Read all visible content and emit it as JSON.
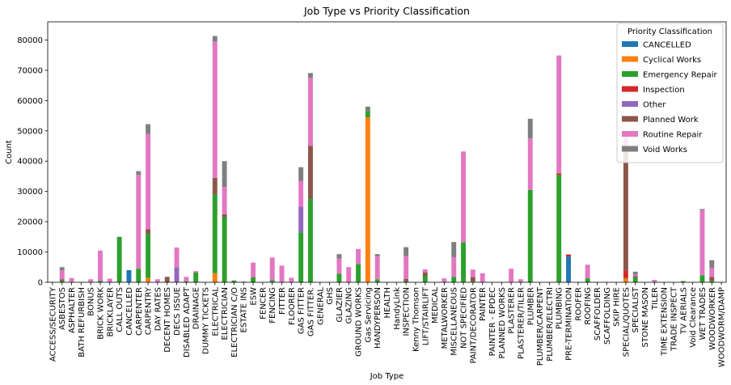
{
  "chart_data": {
    "type": "bar",
    "stacked": true,
    "title": "Job Type vs Priority Classification",
    "xlabel": "Job Type",
    "ylabel": "Count",
    "ylim": [
      0,
      86000
    ],
    "yticks": [
      0,
      10000,
      20000,
      30000,
      40000,
      50000,
      60000,
      70000,
      80000
    ],
    "grid": false,
    "legend": {
      "title": "Priority Classification",
      "placement": "top-right"
    },
    "categories": [
      "ACCESS/SECURITY",
      "ASBESTOS",
      "ASPHALTER",
      "BATH REFURBISH",
      "BONUS",
      "BRICK WORK",
      "BRICKLAYER",
      "CALL OUTS",
      "CANCELLED",
      "CARPENTER",
      "CARPENTRY",
      "DAY RATES",
      "DECENT HOMES",
      "DECS ISSUE",
      "DISABLED ADAPT",
      "DRAINAGE",
      "DUMMY TICKETS",
      "ELECTRICAL",
      "ELECTRICIAN",
      "ELECTRICIAN C/O",
      "ESTATE INS",
      "ESW",
      "FENCER",
      "FENCING",
      "FITTER",
      "FLOORER",
      "GAS FITTER",
      "GAS FITTER.",
      "GENERAL",
      "GHS",
      "GLAZIER",
      "GLAZING",
      "GROUND WORKS",
      "Gas Servicing",
      "HANDYPERSON",
      "HEALTH",
      "HandyLink",
      "INSPECTION",
      "Kenny Thomson",
      "LIFT/STAIRLIFT",
      "MEDICAL",
      "METALWORKER",
      "MISCELLANEOUS",
      "NOT SPECIFIED",
      "PAINT/DECORATOR",
      "PAINTER",
      "PAINTER - EPDEC",
      "PLANNED WORKS",
      "PLASTERER",
      "PLASTERER/TILER",
      "PLUMBER",
      "PLUMBER/CARPENT",
      "PLUMBER/ELECTRI",
      "PLUMBING",
      "PRE-TERMINATION",
      "ROOFER",
      "ROOFING",
      "SCAFFOLDER",
      "SCAFFOLDING",
      "SKIP HIRE",
      "SPECIAL/QUOTES",
      "SPECIALIST",
      "STONE MASON",
      "TILER",
      "TIME EXTENSION",
      "TRADE INSPECT",
      "TV AERIALS",
      "Void Clearance",
      "WET TRADES",
      "WOODWORKER",
      "WOODWORM/DAMP"
    ],
    "series": [
      {
        "name": "CANCELLED",
        "color": "#1f77b4",
        "values": [
          0,
          0,
          0,
          0,
          0,
          0,
          0,
          0,
          4000,
          0,
          0,
          0,
          0,
          0,
          0,
          0,
          0,
          0,
          0,
          0,
          0,
          0,
          0,
          0,
          0,
          0,
          0,
          0,
          0,
          0,
          0,
          0,
          0,
          0,
          0,
          0,
          0,
          0,
          0,
          0,
          0,
          0,
          0,
          0,
          0,
          0,
          0,
          0,
          0,
          0,
          0,
          0,
          0,
          0,
          8500,
          0,
          0,
          0,
          0,
          0,
          0,
          0,
          0,
          0,
          0,
          0,
          0,
          0,
          0,
          0,
          0
        ]
      },
      {
        "name": "Cyclical Works",
        "color": "#ff7f0e",
        "values": [
          0,
          0,
          0,
          0,
          0,
          0,
          0,
          0,
          0,
          0,
          1500,
          0,
          0,
          0,
          0,
          0,
          0,
          3000,
          0,
          0,
          0,
          0,
          0,
          0,
          0,
          0,
          0,
          0,
          0,
          0,
          0,
          0,
          0,
          54500,
          0,
          0,
          0,
          0,
          0,
          0,
          0,
          0,
          0,
          0,
          0,
          0,
          0,
          0,
          0,
          0,
          0,
          0,
          0,
          0,
          0,
          0,
          0,
          0,
          0,
          0,
          1200,
          0,
          0,
          0,
          0,
          0,
          0,
          0,
          0,
          0,
          0
        ]
      },
      {
        "name": "Emergency Repair",
        "color": "#2ca02c",
        "values": [
          100,
          500,
          200,
          0,
          0,
          500,
          0,
          15000,
          0,
          4500,
          14500,
          0,
          0,
          0,
          300,
          3200,
          0,
          26000,
          21500,
          600,
          0,
          1600,
          0,
          700,
          0,
          0,
          16500,
          27500,
          0,
          0,
          2800,
          0,
          6000,
          2000,
          1000,
          0,
          0,
          300,
          0,
          2000,
          0,
          0,
          1800,
          13200,
          200,
          0,
          0,
          0,
          0,
          0,
          30500,
          0,
          0,
          35500,
          0,
          0,
          1300,
          0,
          0,
          0,
          200,
          1500,
          0,
          0,
          0,
          0,
          400,
          0,
          2300,
          500,
          0
        ]
      },
      {
        "name": "Inspection",
        "color": "#d62728",
        "values": [
          0,
          0,
          0,
          0,
          0,
          0,
          0,
          0,
          0,
          0,
          0,
          0,
          0,
          0,
          0,
          0,
          0,
          0,
          0,
          0,
          0,
          0,
          0,
          0,
          0,
          0,
          0,
          0,
          0,
          0,
          0,
          0,
          0,
          0,
          0,
          0,
          0,
          0,
          0,
          0,
          0,
          0,
          0,
          0,
          0,
          0,
          0,
          0,
          0,
          0,
          0,
          0,
          0,
          500,
          700,
          0,
          0,
          0,
          0,
          0,
          2500,
          0,
          0,
          0,
          0,
          0,
          0,
          0,
          0,
          0,
          0
        ]
      },
      {
        "name": "Other",
        "color": "#9467bd",
        "values": [
          0,
          0,
          0,
          0,
          0,
          0,
          0,
          0,
          0,
          0,
          0,
          0,
          0,
          5000,
          0,
          0,
          0,
          0,
          0,
          0,
          0,
          0,
          0,
          0,
          0,
          0,
          8500,
          0,
          0,
          0,
          0,
          0,
          0,
          0,
          0,
          0,
          0,
          0,
          0,
          0,
          0,
          0,
          0,
          0,
          0,
          0,
          0,
          0,
          0,
          0,
          0,
          0,
          0,
          0,
          0,
          0,
          0,
          0,
          0,
          0,
          0,
          0,
          0,
          0,
          0,
          0,
          0,
          0,
          0,
          0,
          0
        ]
      },
      {
        "name": "Planned Work",
        "color": "#8c564b",
        "values": [
          0,
          500,
          0,
          0,
          0,
          0,
          0,
          0,
          0,
          0,
          1500,
          0,
          1800,
          0,
          0,
          0,
          0,
          5500,
          1000,
          0,
          200,
          0,
          0,
          0,
          0,
          0,
          0,
          17500,
          0,
          0,
          0,
          0,
          0,
          0,
          0,
          0,
          0,
          800,
          0,
          1300,
          0,
          0,
          0,
          0,
          1500,
          0,
          0,
          0,
          0,
          0,
          0,
          0,
          0,
          0,
          0,
          0,
          0,
          0,
          0,
          0,
          40000,
          500,
          0,
          0,
          0,
          0,
          0,
          0,
          0,
          1300,
          0
        ]
      },
      {
        "name": "Routine Repair",
        "color": "#e377c2",
        "values": [
          0,
          3000,
          1200,
          0,
          1000,
          10000,
          1200,
          0,
          0,
          31000,
          31500,
          1000,
          0,
          6500,
          1500,
          500,
          0,
          45000,
          9000,
          0,
          0,
          4900,
          0,
          7500,
          5500,
          1500,
          8500,
          22500,
          0,
          0,
          5000,
          5000,
          5000,
          0,
          7500,
          0,
          0,
          7500,
          0,
          1000,
          0,
          1300,
          6500,
          30000,
          2500,
          3000,
          0,
          0,
          4500,
          1000,
          17000,
          0,
          0,
          38900,
          0,
          0,
          4500,
          0,
          0,
          0,
          4500,
          500,
          0,
          800,
          0,
          0,
          0,
          0,
          21500,
          3000,
          0
        ]
      },
      {
        "name": "Void Works",
        "color": "#7f7f7f",
        "values": [
          0,
          1000,
          0,
          0,
          0,
          0,
          0,
          0,
          0,
          1200,
          3200,
          0,
          0,
          0,
          0,
          0,
          0,
          1800,
          8500,
          0,
          0,
          0,
          0,
          0,
          0,
          0,
          4500,
          1600,
          0,
          0,
          1500,
          0,
          0,
          1500,
          800,
          0,
          0,
          3000,
          0,
          0,
          0,
          0,
          5000,
          0,
          0,
          0,
          0,
          0,
          0,
          0,
          6500,
          0,
          0,
          0,
          0,
          0,
          0,
          0,
          0,
          0,
          0,
          1000,
          0,
          0,
          0,
          0,
          0,
          0,
          400,
          2500,
          0
        ]
      }
    ]
  }
}
